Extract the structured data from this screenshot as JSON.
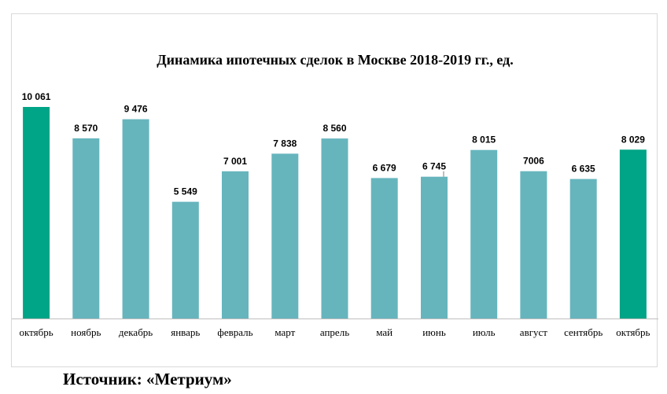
{
  "chart_data": {
    "type": "bar",
    "title": "Динамика ипотечных сделок в Москве 2018-2019 гг., ед.",
    "categories": [
      "октябрь",
      "ноябрь",
      "декабрь",
      "январь",
      "февраль",
      "март",
      "апрель",
      "май",
      "июнь",
      "июль",
      "август",
      "сентябрь",
      "октябрь"
    ],
    "values": [
      10061,
      8570,
      9476,
      5549,
      7001,
      7838,
      8560,
      6679,
      6745,
      8015,
      7006,
      6635,
      8029
    ],
    "data_labels": [
      "10 061",
      "8 570",
      "9 476",
      "5 549",
      "7 001",
      "7 838",
      "8 560",
      "6 679",
      "6 745",
      "8 015",
      "7006",
      "6 635",
      "8 029"
    ],
    "highlighted": [
      true,
      false,
      false,
      false,
      false,
      false,
      false,
      false,
      false,
      false,
      false,
      false,
      true
    ],
    "colors": {
      "default": "#66b5bd",
      "highlight": "#00a486",
      "axis": "#bfbfbf"
    },
    "ylim": [
      0,
      10061
    ],
    "grid": false,
    "legend": "none"
  },
  "source": "Источник: «Метриум»"
}
